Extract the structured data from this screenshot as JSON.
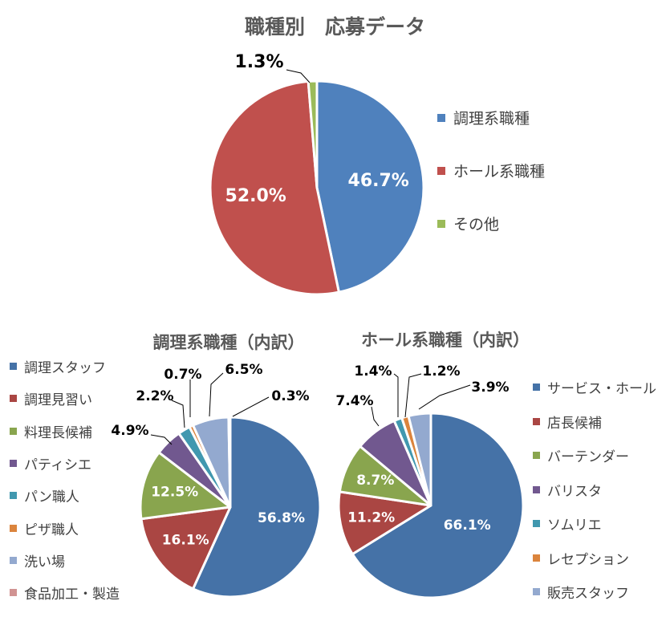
{
  "chart_data": [
    {
      "type": "pie",
      "title": "職種別　応募データ",
      "categories": [
        "調理系職種",
        "ホール系職種",
        "その他"
      ],
      "values": [
        46.7,
        52.0,
        1.3
      ],
      "value_labels": [
        "46.7%",
        "52.0%",
        "1.3%"
      ],
      "colors": [
        "#4f81bd",
        "#c0504d",
        "#9bbb59"
      ],
      "legend_position": "right"
    },
    {
      "type": "pie",
      "title": "調理系職種（内訳）",
      "categories": [
        "調理スタッフ",
        "調理見習い",
        "料理長候補",
        "パティシエ",
        "パン職人",
        "ピザ職人",
        "洗い場",
        "食品加工・製造"
      ],
      "values": [
        56.8,
        16.1,
        12.5,
        4.9,
        2.2,
        0.7,
        6.5,
        0.3
      ],
      "value_labels": [
        "56.8%",
        "16.1%",
        "12.5%",
        "4.9%",
        "2.2%",
        "0.7%",
        "6.5%",
        "0.3%"
      ],
      "colors": [
        "#4572a7",
        "#aa4643",
        "#89a54e",
        "#71588f",
        "#4198af",
        "#db843d",
        "#93a9cf",
        "#d19392"
      ],
      "legend_position": "left"
    },
    {
      "type": "pie",
      "title": "ホール系職種（内訳）",
      "categories": [
        "サービス・ホール",
        "店長候補",
        "バーテンダー",
        "バリスタ",
        "ソムリエ",
        "レセプション",
        "販売スタッフ"
      ],
      "values": [
        66.1,
        11.2,
        8.7,
        7.4,
        1.4,
        1.2,
        3.9
      ],
      "value_labels": [
        "66.1%",
        "11.2%",
        "8.7%",
        "7.4%",
        "1.4%",
        "1.2%",
        "3.9%"
      ],
      "colors": [
        "#4572a7",
        "#aa4643",
        "#89a54e",
        "#71588f",
        "#4198af",
        "#db843d",
        "#93a9cf"
      ],
      "legend_position": "right"
    }
  ]
}
